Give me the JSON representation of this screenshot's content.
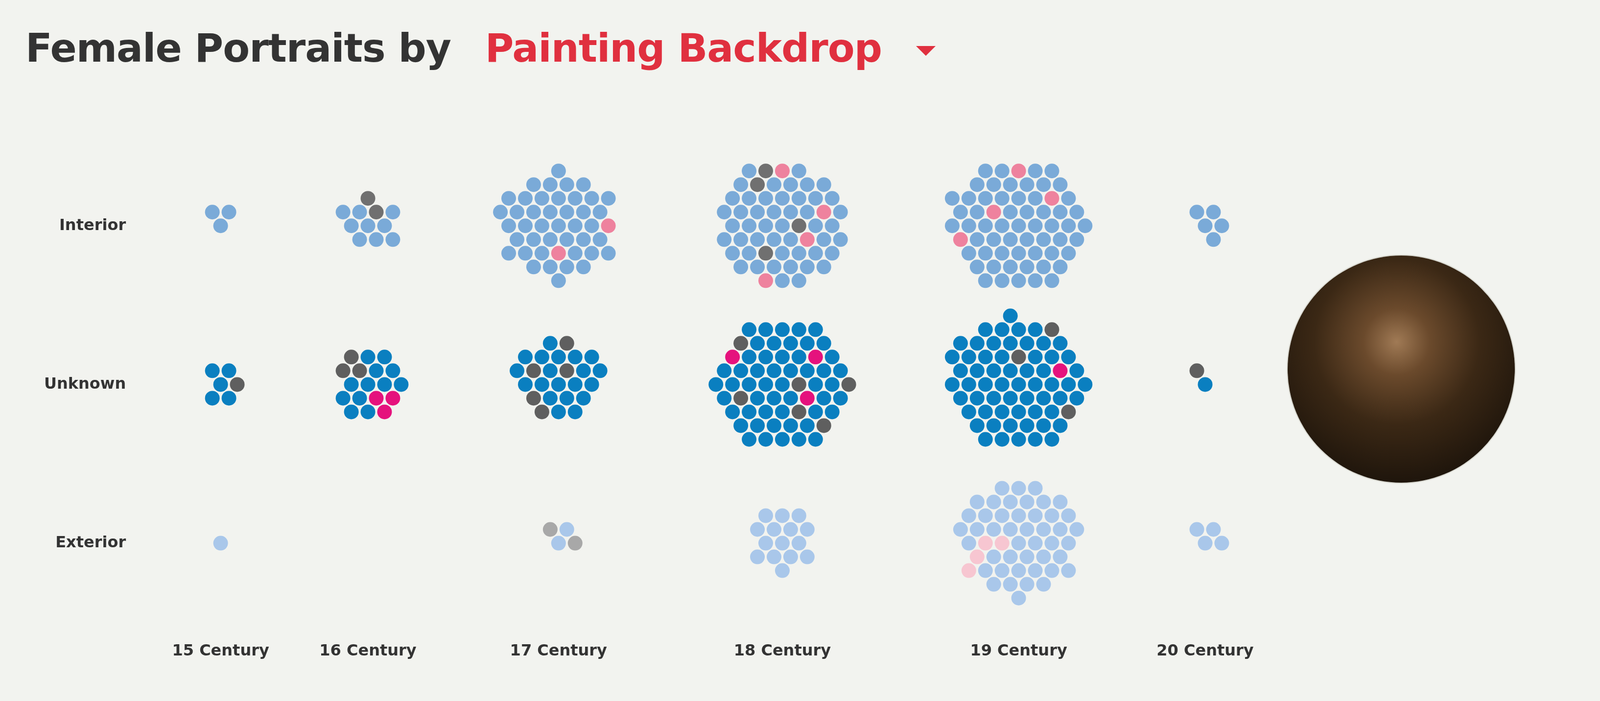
{
  "chart_data": {
    "type": "scatter",
    "title": "Female Portraits by",
    "subtitle": "Painting Backdrop",
    "categories": [
      "15 Century",
      "16 Century",
      "17 Century",
      "18 Century",
      "19 Century",
      "20 Century"
    ],
    "series": [
      {
        "name": "Interior",
        "colors": [
          "#7aaad8",
          "#707070",
          "#ee829e"
        ],
        "values": [
          [
            3,
            0,
            0
          ],
          [
            9,
            2,
            0
          ],
          [
            42,
            0,
            2
          ],
          [
            48,
            4,
            4
          ],
          [
            58,
            0,
            4
          ],
          [
            5,
            0,
            0
          ]
        ]
      },
      {
        "name": "Unknown",
        "colors": [
          "#0a7fc0",
          "#5f5f5f",
          "#e5127d"
        ],
        "values": [
          [
            5,
            1,
            0
          ],
          [
            12,
            3,
            3
          ],
          [
            20,
            5,
            0
          ],
          [
            52,
            6,
            3
          ],
          [
            60,
            3,
            1
          ],
          [
            1,
            1,
            0
          ]
        ]
      },
      {
        "name": "Exterior",
        "colors": [
          "#a9c7ea",
          "#a8a8a8",
          "#f7c6d1"
        ],
        "values": [
          [
            1,
            0,
            0
          ],
          [
            0,
            0,
            0
          ],
          [
            2,
            2,
            0
          ],
          [
            15,
            0,
            0
          ],
          [
            45,
            0,
            4
          ],
          [
            4,
            0,
            0
          ]
        ]
      }
    ],
    "marker": "circle",
    "grid": false
  }
}
